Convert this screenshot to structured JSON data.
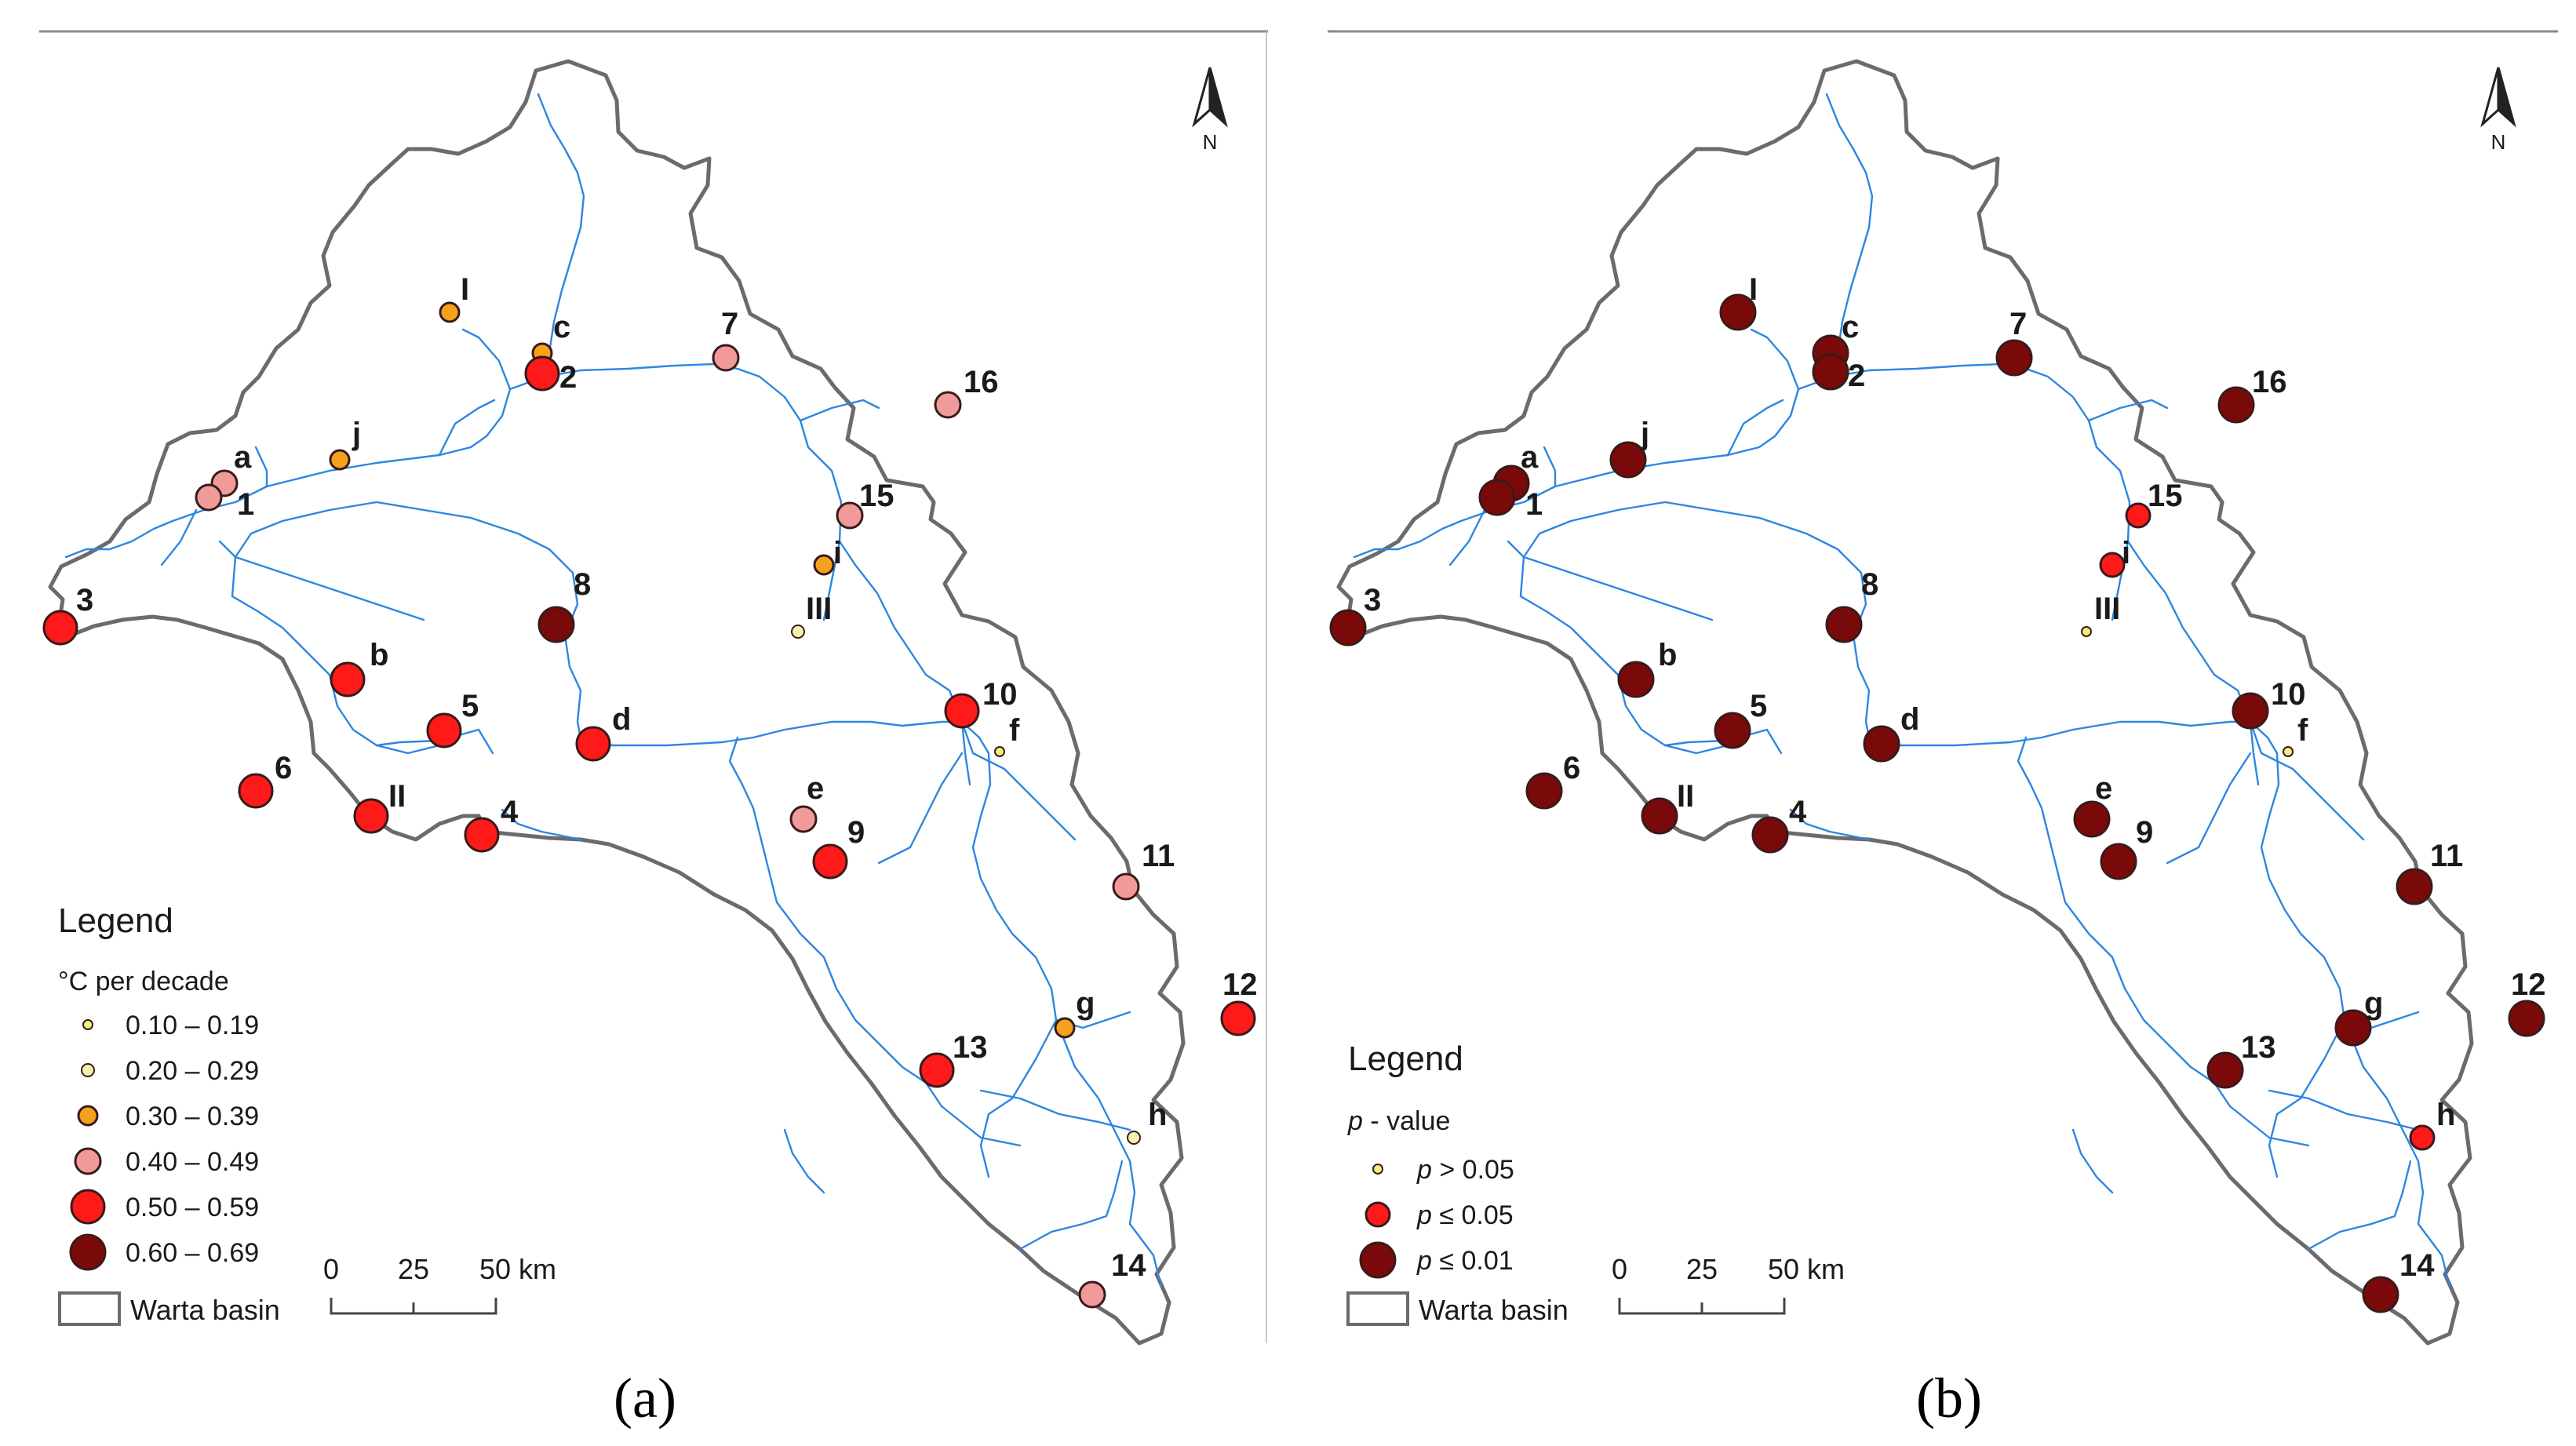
{
  "panels": [
    {
      "id": "a",
      "caption": "(a)",
      "legend": {
        "title": "Legend",
        "subtitle": "°C per decade",
        "classes": [
          {
            "label": "0.10 – 0.19",
            "color": "#f0f07a"
          },
          {
            "label": "0.20 – 0.29",
            "color": "#f5f2b0"
          },
          {
            "label": "0.30 – 0.39",
            "color": "#f4a21c"
          },
          {
            "label": "0.40 – 0.49",
            "color": "#f19a9a"
          },
          {
            "label": "0.50 – 0.59",
            "color": "#ff1a1a"
          },
          {
            "label": "0.60 – 0.69",
            "color": "#7a0a0a"
          }
        ],
        "basin_label": "Warta basin"
      },
      "scalebar": {
        "ticks": [
          "0",
          "25",
          "50 km"
        ]
      },
      "north": "N",
      "stations": [
        {
          "label": "I",
          "cls": 2
        },
        {
          "label": "c",
          "cls": 2
        },
        {
          "label": "2",
          "cls": 4
        },
        {
          "label": "7",
          "cls": 3
        },
        {
          "label": "16",
          "cls": 3
        },
        {
          "label": "j",
          "cls": 2
        },
        {
          "label": "a",
          "cls": 3
        },
        {
          "label": "1",
          "cls": 3
        },
        {
          "label": "15",
          "cls": 3
        },
        {
          "label": "i",
          "cls": 2
        },
        {
          "label": "III",
          "cls": 1
        },
        {
          "label": "3",
          "cls": 4
        },
        {
          "label": "8",
          "cls": 5
        },
        {
          "label": "b",
          "cls": 4
        },
        {
          "label": "5",
          "cls": 4
        },
        {
          "label": "d",
          "cls": 4
        },
        {
          "label": "10",
          "cls": 4
        },
        {
          "label": "f",
          "cls": 0
        },
        {
          "label": "6",
          "cls": 4
        },
        {
          "label": "II",
          "cls": 4
        },
        {
          "label": "4",
          "cls": 4
        },
        {
          "label": "e",
          "cls": 3
        },
        {
          "label": "9",
          "cls": 4
        },
        {
          "label": "11",
          "cls": 3
        },
        {
          "label": "12",
          "cls": 4
        },
        {
          "label": "13",
          "cls": 4
        },
        {
          "label": "g",
          "cls": 2
        },
        {
          "label": "h",
          "cls": 1
        },
        {
          "label": "14",
          "cls": 3
        }
      ]
    },
    {
      "id": "b",
      "caption": "(b)",
      "legend": {
        "title": "Legend",
        "subtitle_italic": "p",
        "subtitle_rest": " - value",
        "classes": [
          {
            "label_italic": "p",
            "label_rest": " > 0.05",
            "color": "#f0f07a"
          },
          {
            "label_italic": "p",
            "label_rest": " ≤ 0.05",
            "color": "#ff1a1a"
          },
          {
            "label_italic": "p",
            "label_rest": " ≤ 0.01",
            "color": "#7a0a0a"
          }
        ],
        "basin_label": "Warta basin"
      },
      "scalebar": {
        "ticks": [
          "0",
          "25",
          "50 km"
        ]
      },
      "north": "N",
      "stations": [
        {
          "label": "I",
          "cls": 2
        },
        {
          "label": "c",
          "cls": 2
        },
        {
          "label": "2",
          "cls": 2
        },
        {
          "label": "7",
          "cls": 2
        },
        {
          "label": "16",
          "cls": 2
        },
        {
          "label": "j",
          "cls": 2
        },
        {
          "label": "a",
          "cls": 2
        },
        {
          "label": "1",
          "cls": 2
        },
        {
          "label": "15",
          "cls": 1
        },
        {
          "label": "i",
          "cls": 1
        },
        {
          "label": "III",
          "cls": 0
        },
        {
          "label": "3",
          "cls": 2
        },
        {
          "label": "8",
          "cls": 2
        },
        {
          "label": "b",
          "cls": 2
        },
        {
          "label": "5",
          "cls": 2
        },
        {
          "label": "d",
          "cls": 2
        },
        {
          "label": "10",
          "cls": 2
        },
        {
          "label": "f",
          "cls": 0
        },
        {
          "label": "6",
          "cls": 2
        },
        {
          "label": "II",
          "cls": 2
        },
        {
          "label": "4",
          "cls": 2
        },
        {
          "label": "e",
          "cls": 2
        },
        {
          "label": "9",
          "cls": 2
        },
        {
          "label": "11",
          "cls": 2
        },
        {
          "label": "12",
          "cls": 2
        },
        {
          "label": "13",
          "cls": 2
        },
        {
          "label": "g",
          "cls": 2
        },
        {
          "label": "h",
          "cls": 1
        },
        {
          "label": "14",
          "cls": 2
        }
      ]
    }
  ]
}
